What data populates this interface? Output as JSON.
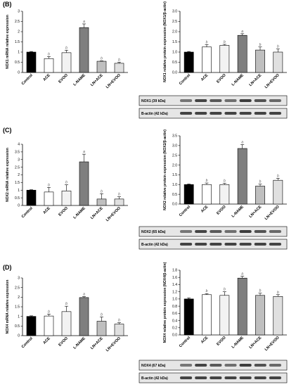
{
  "chart_data": [
    {
      "id": "B-mrna",
      "panel": "(B)",
      "type": "bar",
      "ylabel": "NOX1 mRNA relative expression",
      "ylim": [
        0,
        3
      ],
      "yticks": [
        "0",
        "0.5",
        "1",
        "1.5",
        "2",
        "2.5",
        "3"
      ],
      "categories": [
        "Control",
        "ACE",
        "EVOO",
        "L-NAME",
        "LN+ACE",
        "LN+EVOO"
      ],
      "values": [
        1.0,
        0.68,
        0.97,
        2.2,
        0.55,
        0.45
      ],
      "errors": [
        0.03,
        0.1,
        0.12,
        0.18,
        0.02,
        0.05
      ],
      "letters": [
        "",
        "b",
        "b",
        "a",
        "b",
        "b"
      ]
    },
    {
      "id": "B-protein",
      "panel": "",
      "type": "bar",
      "ylabel": "NOX1 relative protein expression (NOX1/β-actin)",
      "ylim": [
        0,
        3
      ],
      "yticks": [
        "0.0",
        "0.5",
        "1.0",
        "1.5",
        "2.0",
        "2.5",
        "3.0"
      ],
      "categories": [
        "Control",
        "ACE",
        "EVOO",
        "L-NAME",
        "LN+ACE",
        "LN+EVOO"
      ],
      "values": [
        1.0,
        1.25,
        1.33,
        1.82,
        1.1,
        1.0
      ],
      "errors": [
        0.03,
        0.12,
        0.05,
        0.08,
        0.15,
        0.15
      ],
      "letters": [
        "",
        "b",
        "b",
        "a",
        "b",
        "b"
      ],
      "blot_labels": [
        "NOX1 (39 kDa)",
        "Β-actin (42 kDa)"
      ]
    },
    {
      "id": "C-mrna",
      "panel": "(C)",
      "type": "bar",
      "ylabel": "NOX2 mRNA relative expression",
      "ylim": [
        0,
        4
      ],
      "yticks": [
        "0",
        "0.5",
        "1",
        "1.5",
        "2",
        "2.5",
        "3",
        "3.5",
        "4"
      ],
      "categories": [
        "Control",
        "ACE",
        "EVOO",
        "L-NAME",
        "LN+ACE",
        "LN+EVOO"
      ],
      "values": [
        1.0,
        0.88,
        0.95,
        2.85,
        0.42,
        0.42
      ],
      "errors": [
        0.03,
        0.3,
        0.4,
        0.5,
        0.35,
        0.15
      ],
      "letters": [
        "",
        "b",
        "b",
        "a",
        "b",
        "b"
      ]
    },
    {
      "id": "C-protein",
      "panel": "",
      "type": "bar",
      "ylabel": "NOX2 relative protein expression (NOX2/β-actin)",
      "ylim": [
        0,
        3.5
      ],
      "yticks": [
        "0.0",
        "0.5",
        "1.0",
        "1.5",
        "2.0",
        "2.5",
        "3.0",
        "3.5"
      ],
      "categories": [
        "Control",
        "ACE",
        "EVOO",
        "L-NAME",
        "LN+ACE",
        "LN+EVOO"
      ],
      "values": [
        1.0,
        1.0,
        1.0,
        2.85,
        0.92,
        1.22
      ],
      "errors": [
        0.03,
        0.08,
        0.06,
        0.2,
        0.1,
        0.1
      ],
      "letters": [
        "",
        "b",
        "b",
        "a",
        "b",
        "b"
      ],
      "blot_labels": [
        "NOX2 (65 kDa)",
        "Β-actin (42 kDa)"
      ]
    },
    {
      "id": "D-mrna",
      "panel": "(D)",
      "type": "bar",
      "ylabel": "NOX4 mRNA relative expression",
      "ylim": [
        0,
        3
      ],
      "yticks": [
        "0",
        "0.5",
        "1",
        "1.5",
        "2",
        "2.5",
        "3"
      ],
      "categories": [
        "Control",
        "ACE",
        "EVOO",
        "L-NAME",
        "LN+ACE",
        "LN+EVOO"
      ],
      "values": [
        1.0,
        1.02,
        1.25,
        1.98,
        0.75,
        0.6
      ],
      "errors": [
        0.03,
        0.1,
        0.28,
        0.05,
        0.22,
        0.07
      ],
      "letters": [
        "",
        "b",
        "b",
        "a",
        "b",
        "b"
      ]
    },
    {
      "id": "D-protein",
      "panel": "",
      "type": "bar",
      "ylabel": "NOX4 relative protein expression (NOX4/β-actin)",
      "ylim": [
        0,
        1.8
      ],
      "yticks": [
        "0.0",
        "0.2",
        "0.4",
        "0.6",
        "0.8",
        "1.0",
        "1.2",
        "1.4",
        "1.6",
        "1.8"
      ],
      "categories": [
        "Control",
        "ACE",
        "EVOO",
        "L-NAME",
        "LN+ACE",
        "LN+EVOO"
      ],
      "values": [
        1.0,
        1.12,
        1.1,
        1.58,
        1.1,
        1.07
      ],
      "errors": [
        0.03,
        0.03,
        0.1,
        0.05,
        0.06,
        0.05
      ],
      "letters": [
        "",
        "b",
        "b",
        "a",
        "b",
        "b"
      ],
      "blot_labels": [
        "NOX4 (67 kDa)",
        "Β-actin (42 kDa)"
      ]
    }
  ],
  "colors": {
    "bars": [
      "#000000",
      "#ffffff",
      "#f2f2f2",
      "#7f7f7f",
      "#bfbfbf",
      "#e0e0e0"
    ],
    "bar_stroke": "#000000",
    "blot_bg": "#e6e6e6",
    "band": "#1a1a1a"
  }
}
